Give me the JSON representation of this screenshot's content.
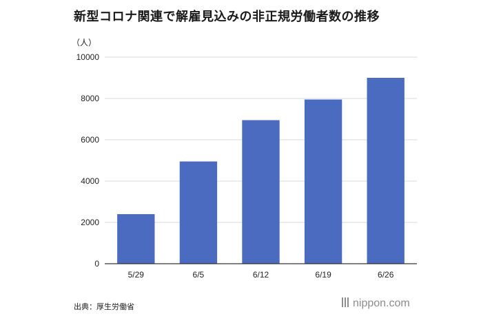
{
  "title": "新型コロナ関連で解雇見込みの非正規労働者数の推移",
  "source": "出典：厚生労働省",
  "logo": "nippon.com",
  "colors": {
    "bar": "#4a6bbf",
    "grid": "#d9d9d9",
    "axis": "#333333"
  },
  "chart_data": {
    "type": "bar",
    "title": "新型コロナ関連で解雇見込みの非正規労働者数の推移",
    "ylabel": "（人）",
    "xlabel": "",
    "categories": [
      "5/29",
      "6/5",
      "6/12",
      "6/19",
      "6/26"
    ],
    "values": [
      2400,
      4950,
      6950,
      7950,
      9000
    ],
    "ylim": [
      0,
      10000
    ],
    "yticks": [
      0,
      2000,
      4000,
      6000,
      8000,
      10000
    ],
    "grid": true,
    "legend": "none"
  }
}
